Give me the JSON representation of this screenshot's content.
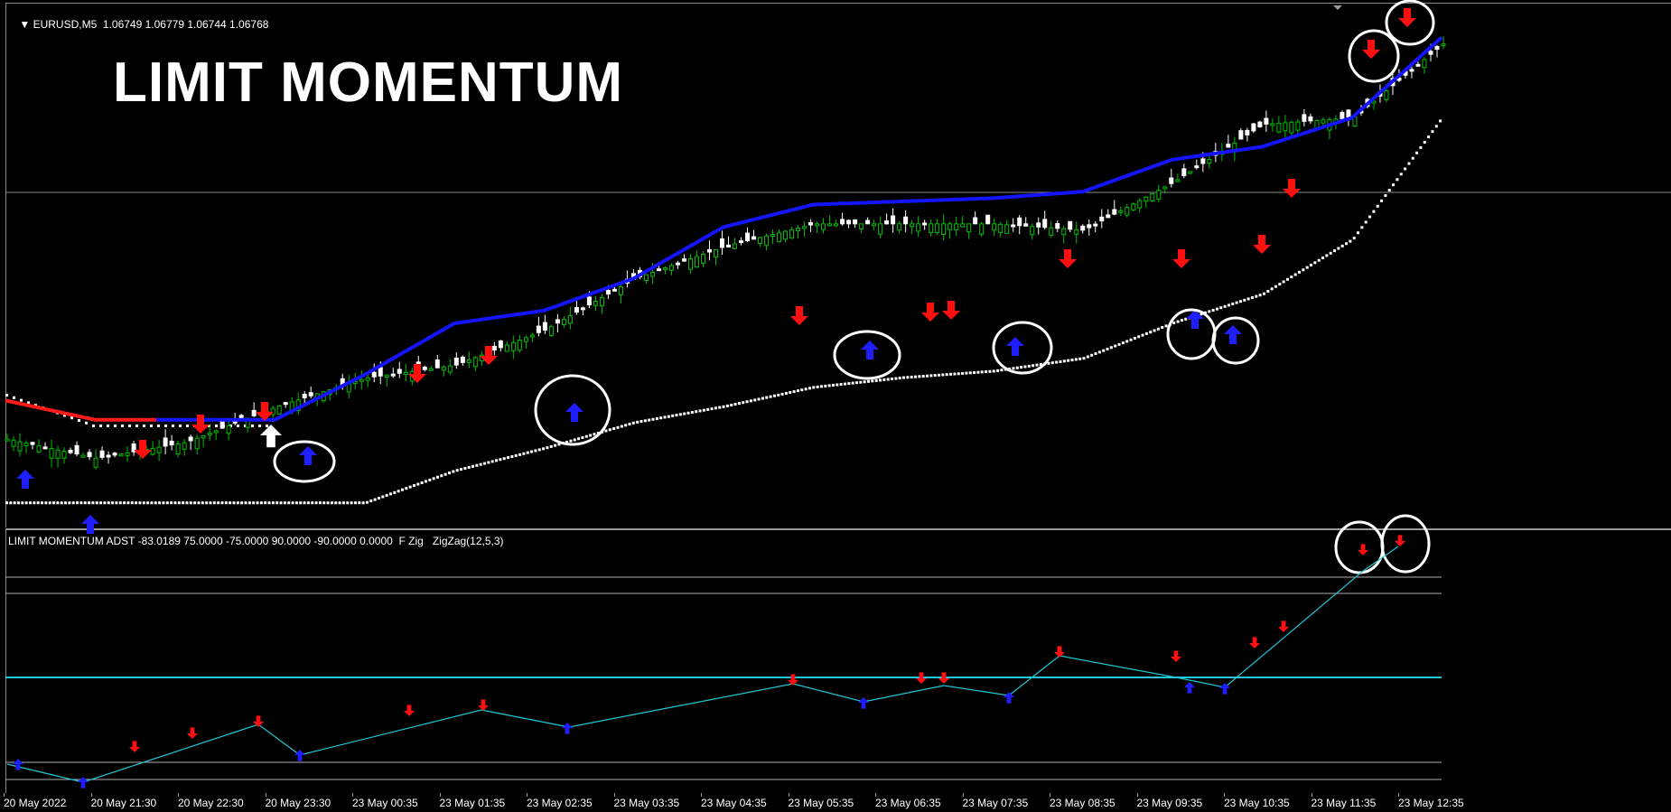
{
  "window": {
    "symbol_header": "EURUSD,M5  1.06749 1.06779 1.06744 1.06768",
    "banner_text": "LIMIT MOMENTUM",
    "indicator_header": "LIMIT MOMENTUM ADST -83.0189 75.0000 -75.0000 90.0000 -90.0000 0.0000  F Zig   ZigZag(12,5,3)"
  },
  "time_axis": {
    "labels": [
      "20 May 2022",
      "20 May 21:30",
      "20 May 22:30",
      "20 May 23:30",
      "23 May 00:35",
      "23 May 01:35",
      "23 May 02:35",
      "23 May 03:35",
      "23 May 04:35",
      "23 May 05:35",
      "23 May 06:35",
      "23 May 07:35",
      "23 May 08:35",
      "23 May 09:35",
      "23 May 10:35",
      "23 May 11:35",
      "23 May 12:35"
    ]
  },
  "colors": {
    "background": "#000000",
    "bull_candle": "#00c000",
    "bear_candle": "#ffffff",
    "ma_line": "#1414ff",
    "ma_line_early": "#ff1a1a",
    "band_dots": "#ffffff",
    "sell_arrow": "#ff1010",
    "buy_arrow": "#1e1eff",
    "zigzag": "#22c8d8",
    "level_line": "#b0b0b0",
    "zero_line": "#22c8d8",
    "highlight_circle": "#ffffff"
  },
  "chart_data": [
    {
      "type": "line",
      "pane": "price",
      "xlabel": "",
      "ylabel": "",
      "series": [
        {
          "values": [
            1.06,
            1.0594,
            1.0599,
            1.061,
            1.0619,
            1.0623,
            1.0634,
            1.065,
            1.066,
            1.0667,
            1.0667,
            1.0667,
            1.0665,
            1.068,
            1.0698,
            1.07,
            1.0723
          ]
        },
        {
          "values": [
            1.0612,
            1.0606,
            1.0606,
            1.0606,
            1.062,
            1.0636,
            1.064,
            1.065,
            1.0666,
            1.0673,
            1.0674,
            1.0675,
            1.0677,
            1.0687,
            1.0691,
            1.07,
            1.0725
          ]
        },
        {
          "values": [
            1.058,
            1.058,
            1.058,
            1.058,
            1.058,
            1.059,
            1.0597,
            1.0605,
            1.061,
            1.0616,
            1.0619,
            1.0621,
            1.0625,
            1.0636,
            1.0645,
            1.0662,
            1.07
          ]
        }
      ]
    },
    {
      "type": "line",
      "pane": "indicator",
      "xlabel": "",
      "ylabel": "",
      "ylim": [
        -100,
        100
      ],
      "series": [
        {
          "values": [
            -83.0,
            -88.0,
            -55.0,
            -39.0,
            -62.0,
            -40.0,
            -26.0,
            -40.0,
            -14.0,
            -25.0,
            -12.0,
            -28.0,
            16.0,
            -10.0,
            -14.0,
            90.0,
            112.0
          ]
        }
      ]
    }
  ]
}
